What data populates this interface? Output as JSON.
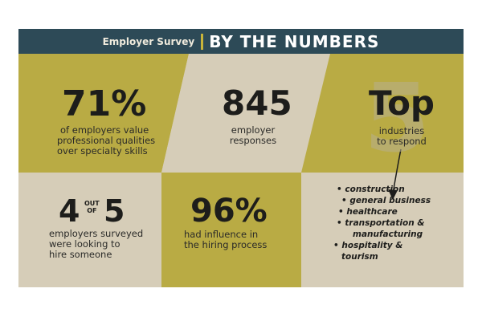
{
  "header": {
    "subtitle": "Employer Survey",
    "title": "BY THE NUMBERS"
  },
  "colors": {
    "header_bg": "#2d4a57",
    "olive": "#b9ab44",
    "tan": "#d9d1bf",
    "text": "#1d1d1b"
  },
  "stats": {
    "qualities": {
      "value": "71%",
      "caption": [
        "of employers value",
        "professional qualities",
        "over specialty skills"
      ]
    },
    "responses": {
      "value": "845",
      "caption": [
        "employer",
        "responses"
      ]
    },
    "top": {
      "value": "Top",
      "watermark": "5",
      "caption": [
        "industries",
        "to respond"
      ]
    },
    "hiring": {
      "value_a": "4",
      "out": "OUT",
      "of": "OF",
      "value_b": "5",
      "caption": [
        "employers surveyed",
        "were looking to",
        "hire someone"
      ]
    },
    "influence": {
      "value": "96%",
      "caption": [
        "had influence in",
        "the hiring process"
      ]
    }
  },
  "industries": [
    "construction",
    "general business",
    "healthcare",
    "transportation &",
    "manufacturing",
    "hospitality &",
    "tourism"
  ]
}
